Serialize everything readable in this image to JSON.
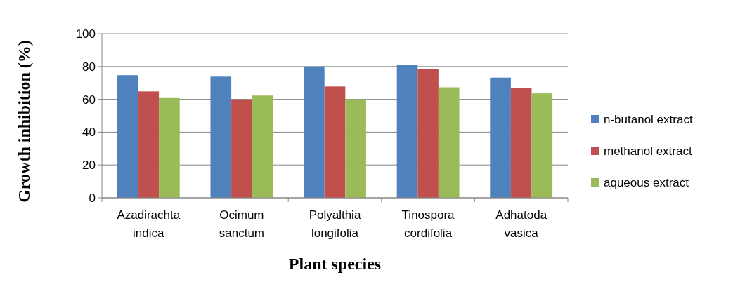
{
  "chart_data": {
    "type": "bar",
    "xlabel": "Plant species",
    "ylabel": "Growth inhibition (%)",
    "categories": [
      "Azadirachta indica",
      "Ocimum sanctum",
      "Polyalthia longifolia",
      "Tinospora cordifolia",
      "Adhatoda vasica"
    ],
    "series": [
      {
        "name": "n-butanol extract",
        "color": "#4f81bd",
        "values": [
          74.7,
          73.8,
          80,
          80.8,
          73.2
        ]
      },
      {
        "name": "methanol extract",
        "color": "#c0504d",
        "values": [
          64.8,
          60,
          67.8,
          78.3,
          66.7
        ]
      },
      {
        "name": "aqueous extract",
        "color": "#9bbb59",
        "values": [
          61.2,
          62.3,
          60,
          67.3,
          63.6
        ]
      }
    ],
    "ylim": [
      0,
      100
    ],
    "yticks": [
      0,
      20,
      40,
      60,
      80,
      100
    ],
    "grid": "y",
    "legend": "right"
  }
}
